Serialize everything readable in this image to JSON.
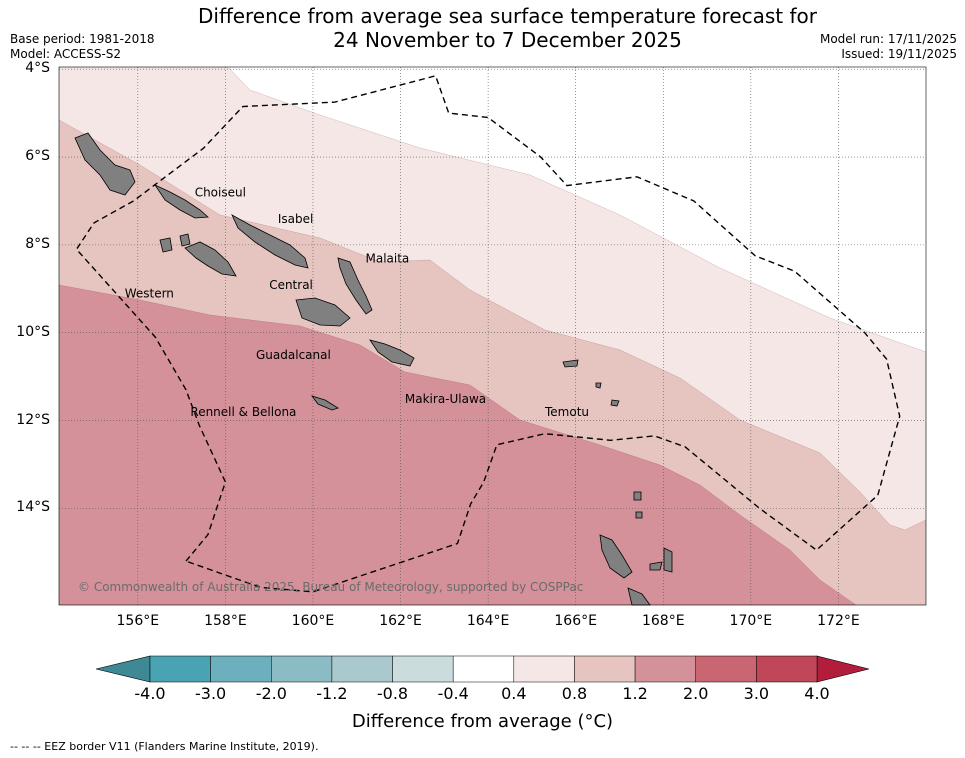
{
  "title": {
    "line1": "Difference from average sea surface temperature forecast for",
    "line2": "24 November to 7 December 2025"
  },
  "meta": {
    "base_period": "Base period: 1981-2018",
    "model": "Model: ACCESS-S2",
    "model_run": "Model run: 17/11/2025",
    "issued": "Issued: 19/11/2025"
  },
  "axes": {
    "lat_labels": [
      "4°S",
      "6°S",
      "8°S",
      "10°S",
      "12°S",
      "14°S"
    ],
    "lon_labels": [
      "156°E",
      "158°E",
      "160°E",
      "162°E",
      "164°E",
      "166°E",
      "168°E",
      "170°E",
      "172°E"
    ]
  },
  "map": {
    "extent": {
      "lon_min": 154.2,
      "lon_max": 174.0,
      "lat_min": -16.2,
      "lat_max": -3.95
    },
    "places": [
      {
        "name": "Choiseul",
        "lon": 157.3,
        "lat": -6.9
      },
      {
        "name": "Isabel",
        "lon": 159.2,
        "lat": -7.5
      },
      {
        "name": "Malaita",
        "lon": 161.2,
        "lat": -8.4
      },
      {
        "name": "Western",
        "lon": 155.7,
        "lat": -9.2
      },
      {
        "name": "Central",
        "lon": 159.0,
        "lat": -9.0
      },
      {
        "name": "Guadalcanal",
        "lon": 158.7,
        "lat": -10.6
      },
      {
        "name": "Makira-Ulawa",
        "lon": 162.1,
        "lat": -11.6
      },
      {
        "name": "Temotu",
        "lon": 165.3,
        "lat": -11.9
      },
      {
        "name": "Rennell & Bellona",
        "lon": 157.2,
        "lat": -11.9
      }
    ],
    "copyright": "© Commonwealth of Australia 2025, Bureau of Meteorology, supported by COSPPac",
    "eez_border": [
      [
        157.1,
        -15.2
      ],
      [
        157.6,
        -14.6
      ],
      [
        158.0,
        -13.4
      ],
      [
        157.4,
        -12.1
      ],
      [
        157.1,
        -11.3
      ],
      [
        156.4,
        -10.1
      ],
      [
        155.5,
        -9.1
      ],
      [
        154.6,
        -8.1
      ],
      [
        155.0,
        -7.5
      ],
      [
        155.9,
        -7.0
      ],
      [
        157.5,
        -5.8
      ],
      [
        158.4,
        -4.85
      ],
      [
        160.5,
        -4.75
      ],
      [
        162.8,
        -4.15
      ],
      [
        163.1,
        -5.0
      ],
      [
        164.0,
        -5.1
      ],
      [
        165.2,
        -6.0
      ],
      [
        165.8,
        -6.65
      ],
      [
        167.4,
        -6.45
      ],
      [
        168.7,
        -7.0
      ],
      [
        170.1,
        -8.25
      ],
      [
        171.0,
        -8.6
      ],
      [
        172.6,
        -10.0
      ],
      [
        173.1,
        -10.6
      ],
      [
        173.4,
        -11.9
      ],
      [
        172.9,
        -13.7
      ],
      [
        171.5,
        -14.95
      ],
      [
        170.2,
        -14.0
      ],
      [
        168.5,
        -12.6
      ],
      [
        167.8,
        -12.35
      ],
      [
        166.8,
        -12.45
      ],
      [
        165.3,
        -12.3
      ],
      [
        164.2,
        -12.55
      ],
      [
        163.9,
        -13.4
      ],
      [
        163.6,
        -13.9
      ],
      [
        163.3,
        -14.8
      ],
      [
        160.0,
        -15.9
      ],
      [
        158.8,
        -15.8
      ]
    ]
  },
  "colorbar": {
    "title": "Difference from average (°C)",
    "ticks": [
      "-4.0",
      "-3.0",
      "-2.0",
      "-1.2",
      "-0.8",
      "-0.4",
      "0.4",
      "0.8",
      "1.2",
      "2.0",
      "3.0",
      "4.0"
    ],
    "under_color": "#3f8896",
    "over_color": "#b11d3a",
    "colors": [
      "#4aa3b3",
      "#6cafbd",
      "#8bbcc6",
      "#a9c9cf",
      "#cbdcdf",
      "#ffffff",
      "#f4e7e6",
      "#e6c5c1",
      "#d4919a",
      "#c96672",
      "#bf4758"
    ]
  },
  "footnote": "--  --  -- EEZ border V11 (Flanders Marine Institute, 2019)."
}
